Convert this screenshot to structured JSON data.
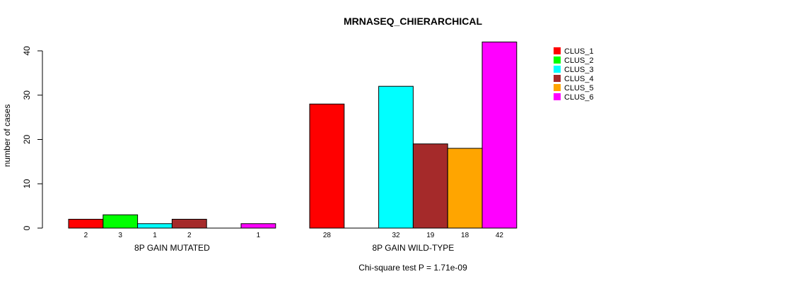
{
  "chart_data": {
    "type": "bar",
    "title": "MRNASEQ_CHIERARCHICAL",
    "ylabel": "number of cases",
    "xlabel": "",
    "ylim": [
      0,
      42
    ],
    "yticks": [
      0,
      10,
      20,
      30,
      40
    ],
    "groups": [
      "8P GAIN MUTATED",
      "8P GAIN WILD-TYPE"
    ],
    "series": [
      {
        "name": "CLUS_1",
        "color": "#ff0000",
        "values": [
          2,
          28
        ]
      },
      {
        "name": "CLUS_2",
        "color": "#00ff00",
        "values": [
          3,
          0
        ]
      },
      {
        "name": "CLUS_3",
        "color": "#00ffff",
        "values": [
          1,
          32
        ]
      },
      {
        "name": "CLUS_4",
        "color": "#a52a2a",
        "values": [
          2,
          19
        ]
      },
      {
        "name": "CLUS_5",
        "color": "#ffa500",
        "values": [
          0,
          18
        ]
      },
      {
        "name": "CLUS_6",
        "color": "#ff00ff",
        "values": [
          1,
          42
        ]
      }
    ],
    "legend_position": "top-right",
    "grid": false,
    "annotation": "Chi-square test P = 1.71e-09"
  }
}
